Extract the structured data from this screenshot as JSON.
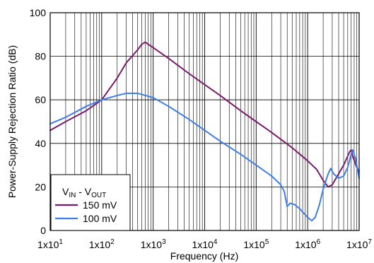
{
  "chart_data": {
    "type": "line",
    "xlabel": "Frequency (Hz)",
    "ylabel": "Power-Supply Rejection Ratio (dB)",
    "x_scale": "log",
    "xlim": [
      10,
      10000000
    ],
    "ylim": [
      0,
      100
    ],
    "x_tick_labels": [
      {
        "mantissa": "1x10",
        "exp": "1"
      },
      {
        "mantissa": "1x10",
        "exp": "2"
      },
      {
        "mantissa": "1x10",
        "exp": "3"
      },
      {
        "mantissa": "1x10",
        "exp": "4"
      },
      {
        "mantissa": "1x10",
        "exp": "5"
      },
      {
        "mantissa": "1x10",
        "exp": "6"
      },
      {
        "mantissa": "1x10",
        "exp": "7"
      }
    ],
    "y_ticks": [
      0,
      20,
      40,
      60,
      80,
      100
    ],
    "grid": true,
    "legend": {
      "title": {
        "main": "V",
        "sub1": "IN",
        "mid": " - V",
        "sub2": "OUT"
      },
      "position": "bottom-left"
    },
    "series": [
      {
        "name": "150 mV",
        "color": "#7b1a6b",
        "points": [
          [
            10,
            46
          ],
          [
            20,
            50
          ],
          [
            50,
            55
          ],
          [
            100,
            60
          ],
          [
            200,
            70
          ],
          [
            300,
            77
          ],
          [
            500,
            83
          ],
          [
            600,
            85.5
          ],
          [
            700,
            86.5
          ],
          [
            800,
            85.5
          ],
          [
            1000,
            84
          ],
          [
            2000,
            79
          ],
          [
            5000,
            72
          ],
          [
            10000,
            67
          ],
          [
            20000,
            62
          ],
          [
            50000,
            55
          ],
          [
            100000,
            50
          ],
          [
            200000,
            45
          ],
          [
            500000,
            38
          ],
          [
            1000000,
            32
          ],
          [
            1500000,
            28
          ],
          [
            2000000,
            23
          ],
          [
            2500000,
            20
          ],
          [
            3000000,
            21
          ],
          [
            5000000,
            30
          ],
          [
            6500000,
            36
          ],
          [
            7000000,
            37
          ],
          [
            7500000,
            34
          ],
          [
            9000000,
            29
          ],
          [
            10000000,
            27
          ]
        ]
      },
      {
        "name": "100 mV",
        "color": "#3d7ee8",
        "points": [
          [
            10,
            49
          ],
          [
            20,
            52
          ],
          [
            50,
            57
          ],
          [
            100,
            60
          ],
          [
            200,
            62
          ],
          [
            300,
            63
          ],
          [
            500,
            63
          ],
          [
            1000,
            61
          ],
          [
            2000,
            57
          ],
          [
            5000,
            51
          ],
          [
            10000,
            46
          ],
          [
            20000,
            41
          ],
          [
            50000,
            35
          ],
          [
            100000,
            30
          ],
          [
            200000,
            25
          ],
          [
            300000,
            21
          ],
          [
            350000,
            18
          ],
          [
            400000,
            11
          ],
          [
            450000,
            12.5
          ],
          [
            550000,
            12
          ],
          [
            700000,
            10
          ],
          [
            1000000,
            6
          ],
          [
            1200000,
            4.5
          ],
          [
            1400000,
            6
          ],
          [
            1700000,
            12
          ],
          [
            2000000,
            19
          ],
          [
            2500000,
            26
          ],
          [
            2800000,
            28.5
          ],
          [
            3200000,
            26
          ],
          [
            4000000,
            24
          ],
          [
            5000000,
            25
          ],
          [
            6000000,
            29
          ],
          [
            7000000,
            35
          ],
          [
            7500000,
            37
          ],
          [
            8500000,
            33
          ],
          [
            10000000,
            24
          ]
        ]
      }
    ]
  }
}
